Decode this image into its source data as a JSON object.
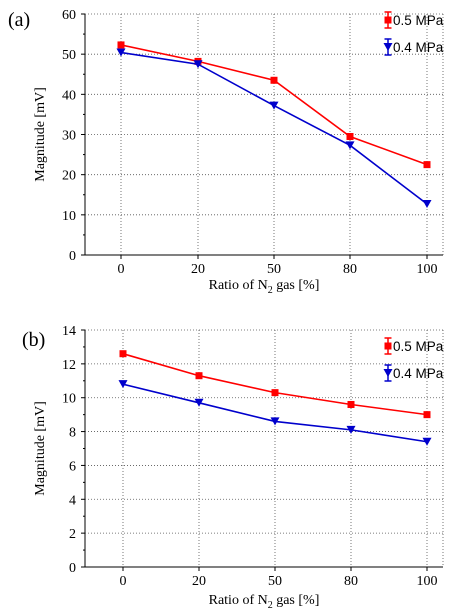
{
  "chart_data": [
    {
      "panel_label": "(a)",
      "type": "line",
      "categories": [
        "0",
        "20",
        "50",
        "80",
        "100"
      ],
      "series": [
        {
          "name": "0.5 MPa",
          "values": [
            52.3,
            48.2,
            43.5,
            29.5,
            22.5
          ],
          "color": "#ff0000",
          "marker": "square"
        },
        {
          "name": "0.4 MPa",
          "values": [
            50.4,
            47.5,
            37.2,
            27.3,
            12.7
          ],
          "color": "#0000cc",
          "marker": "triangle-down"
        }
      ],
      "xlabel_pre": "Ratio of N",
      "xlabel_sub": "2",
      "xlabel_post": " gas [%]",
      "ylabel": "Magnitude [mV]",
      "ylim": [
        0,
        60
      ],
      "yticks": [
        "0",
        "10",
        "20",
        "30",
        "40",
        "50",
        "60"
      ],
      "grid": true,
      "legend_position": "top-right"
    },
    {
      "panel_label": "(b)",
      "type": "line",
      "categories": [
        "0",
        "20",
        "50",
        "80",
        "100"
      ],
      "series": [
        {
          "name": "0.5 MPa",
          "values": [
            12.6,
            11.3,
            10.3,
            9.6,
            9.0
          ],
          "color": "#ff0000",
          "marker": "square"
        },
        {
          "name": "0.4 MPa",
          "values": [
            10.8,
            9.7,
            8.6,
            8.1,
            7.4
          ],
          "color": "#0000cc",
          "marker": "triangle-down"
        }
      ],
      "xlabel_pre": "Ratio of N",
      "xlabel_sub": "2",
      "xlabel_post": " gas [%]",
      "ylabel": "Magnitude [mV]",
      "ylim": [
        0,
        14
      ],
      "yticks": [
        "0",
        "2",
        "4",
        "6",
        "8",
        "10",
        "12",
        "14"
      ],
      "grid": true,
      "legend_position": "top-right"
    }
  ]
}
